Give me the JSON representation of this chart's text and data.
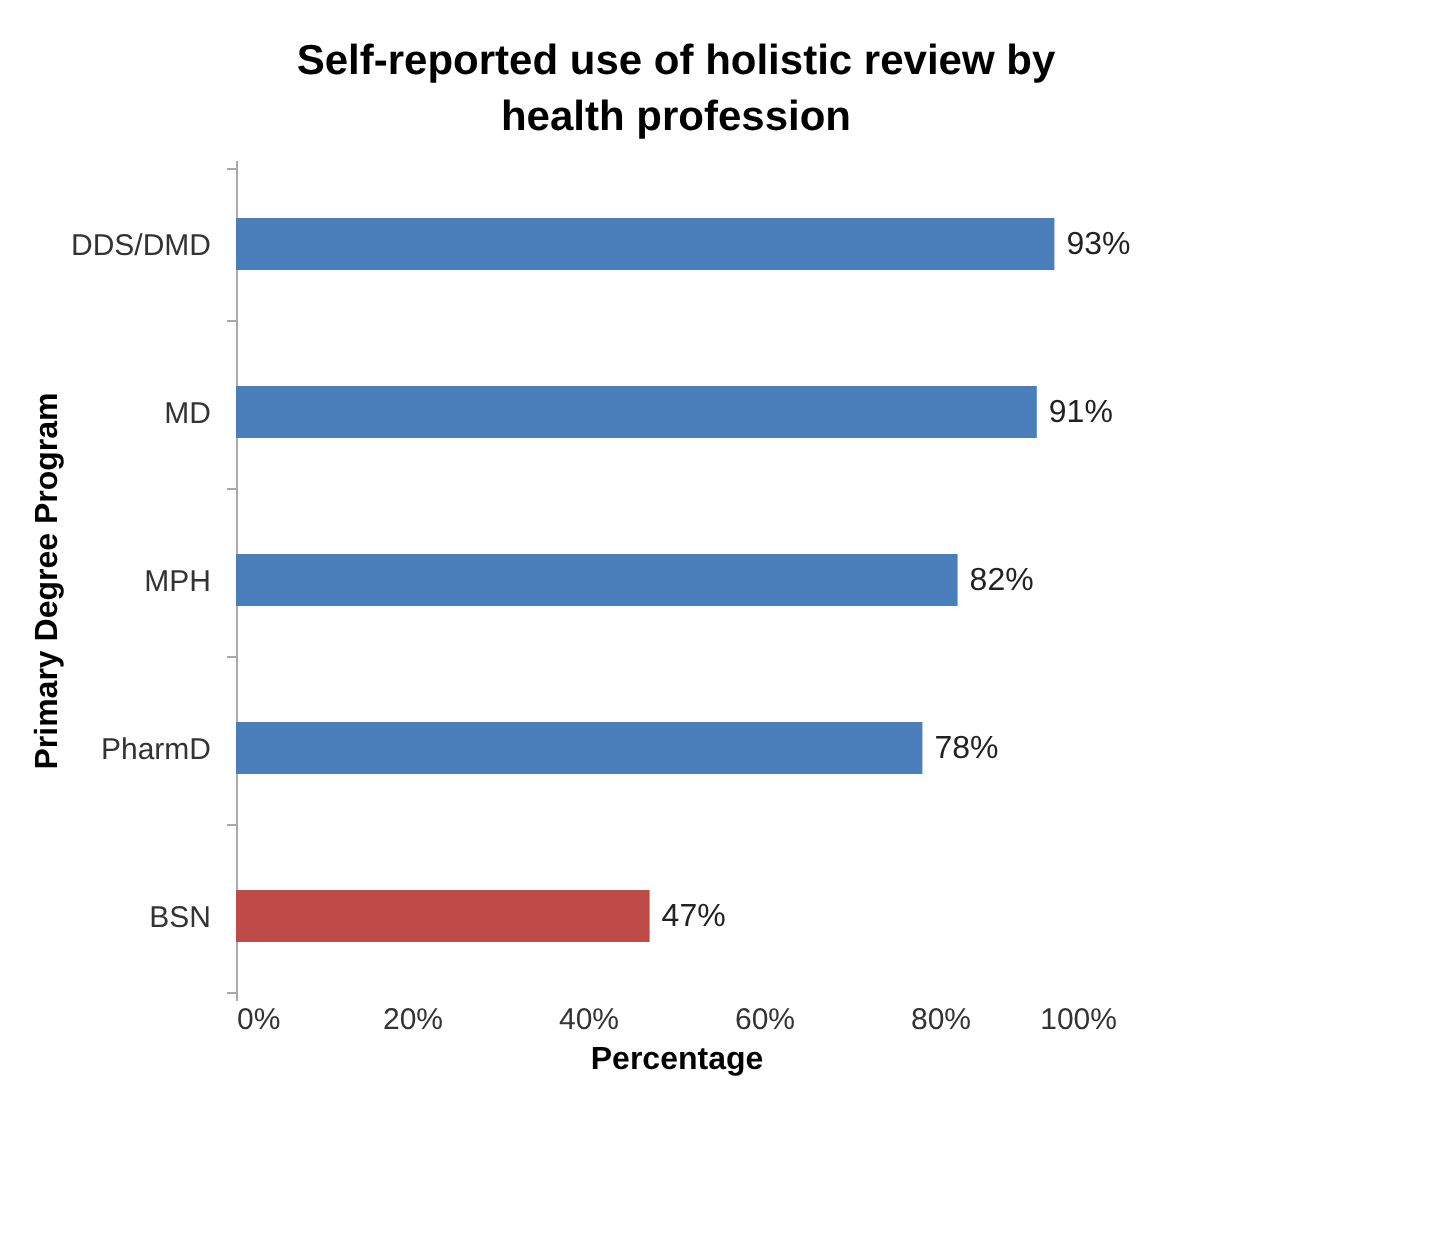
{
  "chart_data": {
    "type": "bar",
    "orientation": "horizontal",
    "title": "Self-reported use of holistic review by health profession",
    "xlabel": "Percentage",
    "ylabel": "Primary Degree Program",
    "categories": [
      "DDS/DMD",
      "MD",
      "MPH",
      "PharmD",
      "BSN"
    ],
    "values": [
      93,
      91,
      82,
      78,
      47
    ],
    "colors": [
      "#4a7ebb",
      "#4a7ebb",
      "#4a7ebb",
      "#4a7ebb",
      "#be4b48"
    ],
    "value_labels": [
      "93%",
      "91%",
      "82%",
      "78%",
      "47%"
    ],
    "xlim": [
      0,
      100
    ],
    "xticks": [
      {
        "value": 0,
        "label": "0%"
      },
      {
        "value": 20,
        "label": "20%"
      },
      {
        "value": 40,
        "label": "40%"
      },
      {
        "value": 60,
        "label": "60%"
      },
      {
        "value": 80,
        "label": "80%"
      },
      {
        "value": 100,
        "label": "100%"
      }
    ],
    "grid": false
  }
}
